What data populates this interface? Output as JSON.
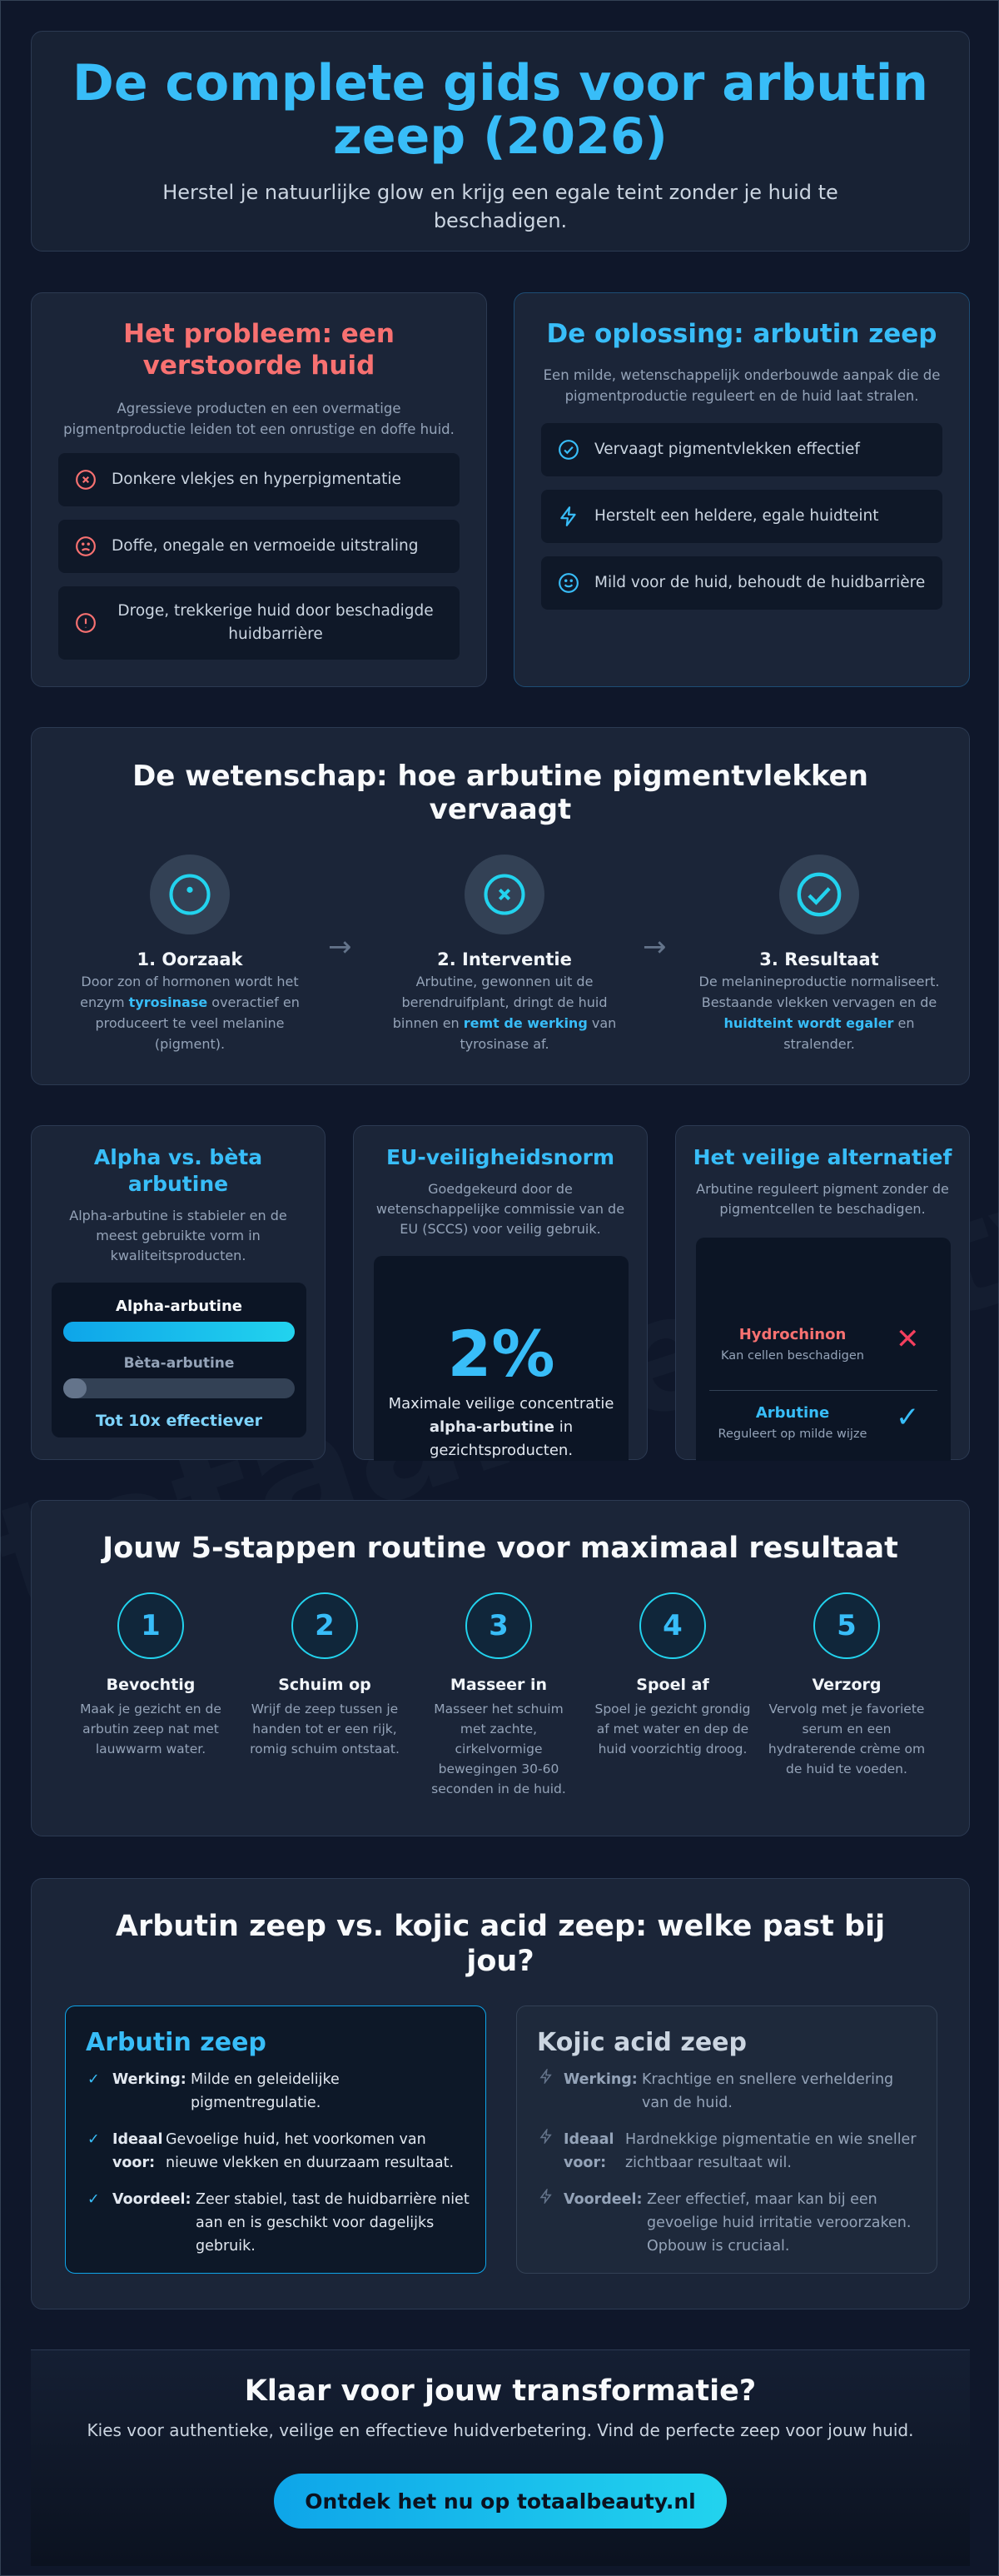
{
  "watermark": "totaalbeauty",
  "hero": {
    "title": "De complete gids voor arbutin zeep (2026)",
    "subtitle": "Herstel je natuurlijke glow en krijg een egale teint zonder je huid te beschadigen."
  },
  "problem": {
    "title": "Het probleem: een verstoorde huid",
    "subtitle": "Agressieve producten en een overmatige pigmentproductie leiden tot een onrustige en doffe huid.",
    "items": [
      {
        "icon": "x-circle-icon",
        "text": "Donkere vlekjes en hyperpigmentatie"
      },
      {
        "icon": "frown-icon",
        "text": "Doffe, onegale en vermoeide uitstraling"
      },
      {
        "icon": "alert-circle-icon",
        "text": "Droge, trekkerige huid door beschadigde huidbarrière"
      }
    ]
  },
  "solution": {
    "title": "De oplossing: arbutin zeep",
    "subtitle": "Een milde, wetenschappelijk onderbouwde aanpak die de pigmentproductie reguleert en de huid laat stralen.",
    "items": [
      {
        "icon": "check-circle-icon",
        "text": "Vervaagt pigmentvlekken effectief"
      },
      {
        "icon": "lightning-icon",
        "text": "Herstelt een heldere, egale huidteint"
      },
      {
        "icon": "smile-icon",
        "text": "Mild voor de huid, behoudt de huidbarrière"
      }
    ]
  },
  "science": {
    "title": "De wetenschap: hoe arbutine pigmentvlekken vervaagt",
    "steps": [
      {
        "title": "1. Oorzaak",
        "pre": "Door zon of hormonen wordt het enzym ",
        "hl": "tyrosinase",
        "post": " overactief en produceert te veel melanine (pigment)."
      },
      {
        "title": "2. Interventie",
        "pre": "Arbutine, gewonnen uit de berendruifplant, dringt de huid binnen en ",
        "hl": "remt de werking",
        "post": " van tyrosinase af."
      },
      {
        "title": "3. Resultaat",
        "pre": "De melanineproductie normaliseert. Bestaande vlekken vervagen en de ",
        "hl": "huidteint wordt egaler",
        "post": " en stralender."
      }
    ],
    "arrow": "→"
  },
  "alpha": {
    "title": "Alpha vs. bèta arbutine",
    "subtitle": "Alpha-arbutine is stabieler en de meest gebruikte vorm in kwaliteitsproducten.",
    "alpha_label": "Alpha-arbutine",
    "beta_label": "Bèta-arbutine",
    "alpha_level": 1.0,
    "beta_level": 0.1,
    "footer": "Tot 10x effectiever"
  },
  "eu": {
    "title": "EU-veiligheidsnorm",
    "subtitle": "Goedgekeurd door de wetenschappelijke commissie van de EU (SCCS) voor veilig gebruik.",
    "value": "2%",
    "desc_pre": "Maximale veilige concentratie ",
    "desc_bold": "alpha-arbutine",
    "desc_post": " in gezichtsproducten."
  },
  "alt": {
    "title": "Het veilige alternatief",
    "subtitle": "Arbutine reguleert pigment zonder de pigmentcellen te beschadigen.",
    "rows": [
      {
        "name": "Hydrochinon",
        "note": "Kan cellen beschadigen",
        "mark": "✕"
      },
      {
        "name": "Arbutine",
        "note": "Reguleert op milde wijze",
        "mark": "✓"
      }
    ]
  },
  "routine": {
    "title": "Jouw 5-stappen routine voor maximaal resultaat",
    "steps": [
      {
        "n": "1",
        "title": "Bevochtig",
        "text": "Maak je gezicht en de arbutin zeep nat met lauwwarm water."
      },
      {
        "n": "2",
        "title": "Schuim op",
        "text": "Wrijf de zeep tussen je handen tot er een rijk, romig schuim ontstaat."
      },
      {
        "n": "3",
        "title": "Masseer in",
        "text": "Masseer het schuim met zachte, cirkelvormige bewegingen 30-60 seconden in de huid."
      },
      {
        "n": "4",
        "title": "Spoel af",
        "text": "Spoel je gezicht grondig af met water en dep de huid voorzichtig droog."
      },
      {
        "n": "5",
        "title": "Verzorg",
        "text": "Vervolg met je favoriete serum en een hydraterende crème om de huid te voeden."
      }
    ]
  },
  "compare": {
    "title": "Arbutin zeep vs. kojic acid zeep: welke past bij jou?",
    "arbutin": {
      "title": "Arbutin zeep",
      "rows": [
        {
          "label": "Werking:",
          "text": "Milde en geleidelijke pigmentregulatie."
        },
        {
          "label": "Ideaal voor:",
          "text": "Gevoelige huid, het voorkomen van nieuwe vlekken en duurzaam resultaat."
        },
        {
          "label": "Voordeel:",
          "text": "Zeer stabiel, tast de huidbarrière niet aan en is geschikt voor dagelijks gebruik."
        }
      ]
    },
    "kojic": {
      "title": "Kojic acid zeep",
      "rows": [
        {
          "label": "Werking:",
          "text": "Krachtige en snellere verheldering van de huid."
        },
        {
          "label": "Ideaal voor:",
          "text": "Hardnekkige pigmentatie en wie sneller zichtbaar resultaat wil."
        },
        {
          "label": "Voordeel:",
          "text": "Zeer effectief, maar kan bij een gevoelige huid irritatie veroorzaken. Opbouw is cruciaal."
        }
      ]
    }
  },
  "cta": {
    "title": "Klaar voor jouw transformatie?",
    "subtitle": "Kies voor authentieke, veilige en effectieve huidverbetering. Vind de perfecte zeep voor jouw huid.",
    "button": "Ontdek het nu op totaalbeauty.nl"
  },
  "colors": {
    "accent": "#38bdf8",
    "problem": "#f87171",
    "background": "#0f172a"
  }
}
